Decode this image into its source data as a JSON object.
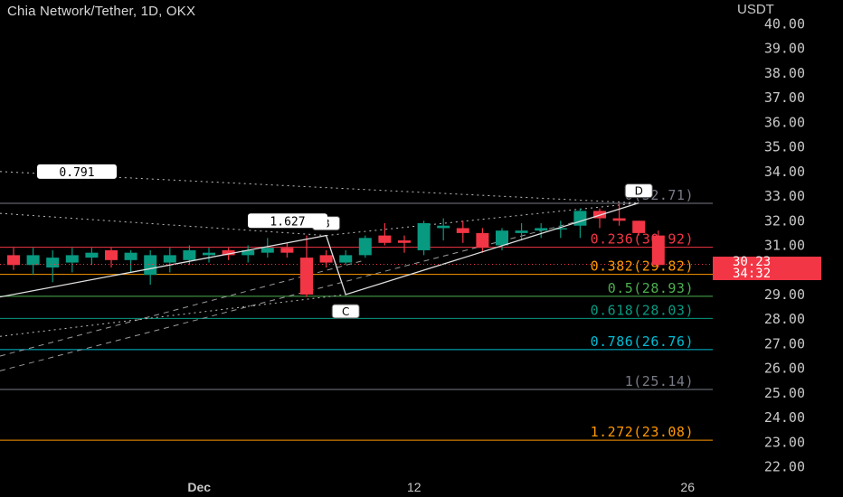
{
  "header": {
    "title": "Chia Network/Tether, 1D, OKX",
    "unit": "USDT"
  },
  "price_tag": {
    "price": "30.23",
    "countdown": "34:32",
    "color": "#f23645"
  },
  "chart_data": {
    "type": "candlestick",
    "ylim": [
      21.6,
      40.6
    ],
    "y_ticks": [
      "40.00",
      "39.00",
      "38.00",
      "37.00",
      "36.00",
      "35.00",
      "34.00",
      "33.00",
      "32.00",
      "31.00",
      "30.00",
      "29.00",
      "28.00",
      "27.00",
      "26.00",
      "25.00",
      "24.00",
      "23.00",
      "22.00"
    ],
    "x_ticks": [
      {
        "label": "Dec",
        "day": -0.5
      },
      {
        "label": "12",
        "day": 10.5
      },
      {
        "label": "26",
        "day": 24.5
      }
    ],
    "candles": [
      [
        -10,
        30.6,
        30.2,
        30.9,
        30.0
      ],
      [
        -9,
        30.2,
        30.6,
        30.9,
        29.8
      ],
      [
        -8,
        30.1,
        30.5,
        30.8,
        29.5
      ],
      [
        -7,
        30.3,
        30.6,
        30.9,
        29.9
      ],
      [
        -6,
        30.5,
        30.7,
        30.9,
        30.2
      ],
      [
        -5,
        30.8,
        30.4,
        30.9,
        30.1
      ],
      [
        -4,
        30.4,
        30.7,
        30.8,
        29.9
      ],
      [
        -3,
        29.8,
        30.6,
        30.8,
        29.4
      ],
      [
        -2,
        30.3,
        30.6,
        30.9,
        29.9
      ],
      [
        -1,
        30.4,
        30.8,
        31.0,
        30.2
      ],
      [
        0,
        30.6,
        30.7,
        30.9,
        30.3
      ],
      [
        1,
        30.8,
        30.6,
        30.9,
        30.4
      ],
      [
        2,
        30.6,
        30.8,
        31.0,
        30.3
      ],
      [
        3,
        30.7,
        30.9,
        31.3,
        30.5
      ],
      [
        4,
        30.9,
        30.7,
        31.1,
        30.5
      ],
      [
        5,
        30.5,
        29.0,
        31.4,
        28.9
      ],
      [
        6,
        30.6,
        30.3,
        30.8,
        30.1
      ],
      [
        7,
        30.3,
        30.6,
        30.8,
        30.2
      ],
      [
        8,
        30.6,
        31.3,
        31.4,
        30.5
      ],
      [
        9,
        31.4,
        31.1,
        31.9,
        31.0
      ],
      [
        10,
        31.2,
        31.1,
        31.4,
        30.7
      ],
      [
        11,
        30.8,
        31.9,
        32.0,
        30.6
      ],
      [
        12,
        31.7,
        31.8,
        32.1,
        31.2
      ],
      [
        13,
        31.7,
        31.5,
        32.0,
        31.1
      ],
      [
        14,
        31.5,
        30.9,
        31.7,
        30.7
      ],
      [
        15,
        31.0,
        31.6,
        31.7,
        30.8
      ],
      [
        16,
        31.5,
        31.6,
        31.9,
        31.2
      ],
      [
        17,
        31.6,
        31.7,
        31.9,
        31.3
      ],
      [
        18,
        31.7,
        31.7,
        32.0,
        31.3
      ],
      [
        19,
        31.8,
        32.4,
        32.5,
        31.3
      ],
      [
        20,
        32.4,
        32.1,
        32.5,
        31.7
      ],
      [
        21,
        32.1,
        32.0,
        32.7,
        31.8
      ],
      [
        22,
        32.0,
        31.5,
        32.0,
        31.4
      ],
      [
        23,
        31.4,
        30.2,
        31.6,
        30.1
      ]
    ],
    "fib_levels": [
      {
        "ratio": "0",
        "price": 32.71,
        "label": "0(32.71)",
        "color": "#787b86"
      },
      {
        "ratio": "0.236",
        "price": 30.92,
        "label": "0.236(30.92)",
        "color": "#f23645"
      },
      {
        "ratio": "0.382",
        "price": 29.82,
        "label": "0.382(29.82)",
        "color": "#ff9800"
      },
      {
        "ratio": "0.5",
        "price": 28.93,
        "label": "0.5(28.93)",
        "color": "#4caf50"
      },
      {
        "ratio": "0.618",
        "price": 28.03,
        "label": "0.618(28.03)",
        "color": "#089981"
      },
      {
        "ratio": "0.786",
        "price": 26.76,
        "label": "0.786(26.76)",
        "color": "#00bcd4"
      },
      {
        "ratio": "1",
        "price": 25.14,
        "label": "1(25.14)",
        "color": "#787b86"
      },
      {
        "ratio": "1.272",
        "price": 23.08,
        "label": "1.272(23.08)",
        "color": "#ff9800"
      }
    ],
    "pattern_points": [
      {
        "label": "B",
        "day": 6,
        "price": 31.4
      },
      {
        "label": "C",
        "day": 7,
        "price": 29.0
      },
      {
        "label": "D",
        "day": 22,
        "price": 32.72
      }
    ],
    "ratio_labels": [
      "0.791",
      "1.627"
    ]
  }
}
